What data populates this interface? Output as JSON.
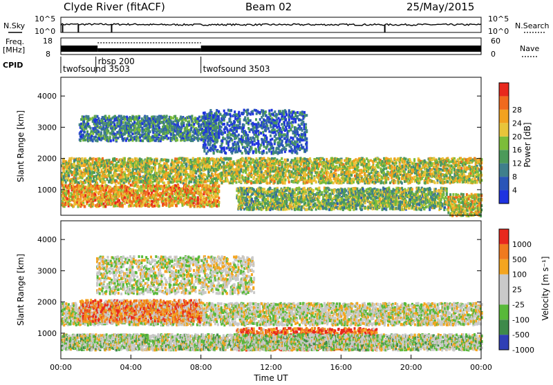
{
  "header": {
    "station": "Clyde River (fitACF)",
    "beam": "Beam 02",
    "date": "25/May/2015"
  },
  "noise_panel": {
    "left_label": "N.Sky",
    "left_ticks": [
      "10^5",
      "10^0"
    ],
    "right_ticks": [
      "10^5",
      "10^0"
    ],
    "right_label": "N.Search"
  },
  "freq_panel": {
    "left_label_line1": "Freq.",
    "left_label_line2": "[MHz]",
    "left_ticks": [
      "18",
      "8"
    ],
    "right_ticks": [
      "60",
      "0"
    ],
    "right_label": "Nave"
  },
  "cpid": {
    "label": "CPID",
    "segments": [
      {
        "name": "twofsound 3503",
        "start_hour": 0
      },
      {
        "name": "rbsp 200",
        "start_hour": 2
      },
      {
        "name": "twofsound 3503",
        "start_hour": 8
      }
    ]
  },
  "chart_data": [
    {
      "type": "heatmap",
      "quantity": "Power",
      "ylabel": "Slant Range [km]",
      "xlabel": "",
      "yticks": [
        1000,
        2000,
        3000,
        4000
      ],
      "ylim": [
        180,
        4600
      ],
      "xlim_hours": [
        0,
        24
      ],
      "colorbar": {
        "label": "Power [dB]",
        "ticks": [
          "4",
          "8",
          "12",
          "16",
          "20",
          "24",
          "28"
        ],
        "colors": [
          "#1f33e0",
          "#2a55b8",
          "#3f7f8c",
          "#4c9a5a",
          "#7cbd3a",
          "#e8c53a",
          "#f2a21f",
          "#f06a1e",
          "#e8281d"
        ]
      },
      "bands": [
        {
          "h0": 0,
          "h1": 24,
          "r0": 1250,
          "r1": 2050,
          "level": 0.55
        },
        {
          "h0": 0,
          "h1": 9,
          "r0": 500,
          "r1": 1200,
          "level": 0.7
        },
        {
          "h0": 1,
          "h1": 9,
          "r0": 2600,
          "r1": 3400,
          "level": 0.3
        },
        {
          "h0": 8,
          "h1": 14,
          "r0": 2200,
          "r1": 3600,
          "level": 0.2
        },
        {
          "h0": 10,
          "h1": 22,
          "r0": 400,
          "r1": 1100,
          "level": 0.45
        },
        {
          "h0": 22,
          "h1": 24,
          "r0": 200,
          "r1": 900,
          "level": 0.6
        }
      ]
    },
    {
      "type": "heatmap",
      "quantity": "Velocity",
      "ylabel": "Slant Range [km]",
      "xlabel": "Time UT",
      "yticks": [
        1000,
        2000,
        3000,
        4000
      ],
      "ylim": [
        180,
        4600
      ],
      "xticks": [
        "00:00",
        "04:00",
        "08:00",
        "12:00",
        "16:00",
        "20:00",
        "00:00"
      ],
      "xlim_hours": [
        0,
        24
      ],
      "colorbar": {
        "label": "Velocity [m s⁻¹]",
        "ticks": [
          "1000",
          "500",
          "100",
          "25",
          "-25",
          "-100",
          "-500",
          "-1000"
        ],
        "colors": [
          "#2f3fb5",
          "#3e8a4a",
          "#58b93a",
          "#c9c9c9",
          "#c9c9c9",
          "#f4a51f",
          "#f07a1e",
          "#e8281d"
        ]
      },
      "bands": [
        {
          "h0": 0,
          "h1": 24,
          "r0": 1300,
          "r1": 2000,
          "level": 0.5
        },
        {
          "h0": 1,
          "h1": 8,
          "r0": 1400,
          "r1": 2100,
          "level": 0.75
        },
        {
          "h0": 2,
          "h1": 11,
          "r0": 2300,
          "r1": 3500,
          "level": 0.5
        },
        {
          "h0": 10,
          "h1": 18,
          "r0": 500,
          "r1": 1200,
          "level": 0.85
        },
        {
          "h0": 0,
          "h1": 24,
          "r0": 500,
          "r1": 1000,
          "level": 0.45
        }
      ]
    }
  ]
}
